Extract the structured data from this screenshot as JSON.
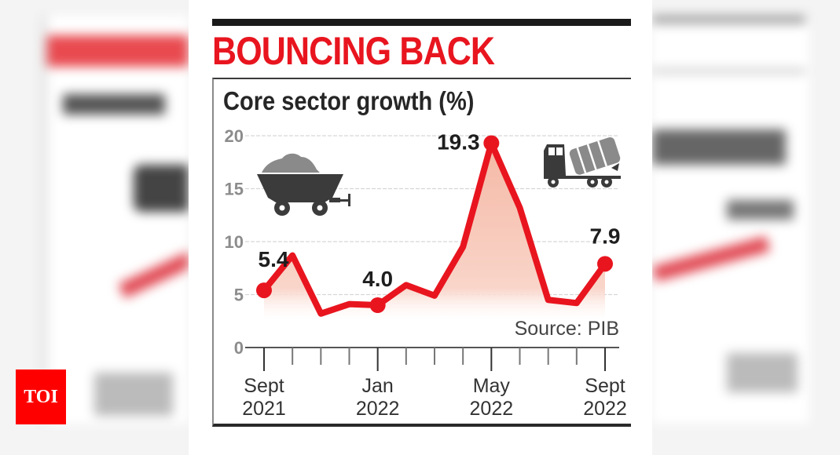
{
  "headline": "BOUNCING BACK",
  "subtitle": "Core sector growth (%)",
  "source": "Source: PIB",
  "logo": "TOI",
  "colors": {
    "headline": "#e8151f",
    "line": "#e8151f",
    "fill": "#f7c3b3",
    "logo_bg": "#ff0000"
  },
  "icons": {
    "left": "coal-wagon-icon",
    "right": "cement-mixer-truck-icon"
  },
  "chart_data": {
    "type": "area",
    "title": "Core sector growth (%)",
    "subtitle": "BOUNCING BACK",
    "xlabel": "",
    "ylabel": "Core sector growth (%)",
    "ylim": [
      0,
      20
    ],
    "yticks": [
      0,
      5,
      10,
      15,
      20
    ],
    "grid": true,
    "x": [
      "Sept 2021",
      "Oct 2021",
      "Nov 2021",
      "Dec 2021",
      "Jan 2022",
      "Feb 2022",
      "Mar 2022",
      "Apr 2022",
      "May 2022",
      "Jun 2022",
      "Jul 2022",
      "Aug 2022",
      "Sept 2022"
    ],
    "x_tick_labels": [
      {
        "line1": "Sept",
        "line2": "2021",
        "index": 0
      },
      {
        "line1": "Jan",
        "line2": "2022",
        "index": 4
      },
      {
        "line1": "May",
        "line2": "2022",
        "index": 8
      },
      {
        "line1": "Sept",
        "line2": "2022",
        "index": 12
      }
    ],
    "series": [
      {
        "name": "Core sector growth (%)",
        "values": [
          5.4,
          8.7,
          3.2,
          4.1,
          4.0,
          5.9,
          4.9,
          9.5,
          19.3,
          13.2,
          4.5,
          4.2,
          7.9
        ]
      }
    ],
    "annotations": [
      {
        "index": 0,
        "label": "5.4"
      },
      {
        "index": 4,
        "label": "4.0"
      },
      {
        "index": 8,
        "label": "19.3"
      },
      {
        "index": 12,
        "label": "7.9"
      }
    ],
    "source": "Source: PIB"
  }
}
